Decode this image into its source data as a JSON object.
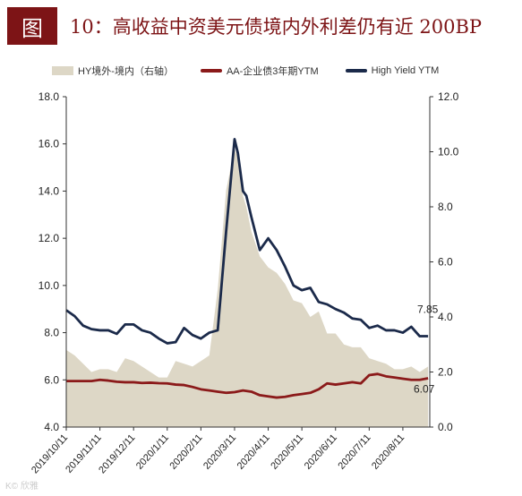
{
  "header": {
    "figure_label": "图",
    "title": "10：高收益中资美元债境内外利差仍有近 200BP"
  },
  "watermark": "K© 欣雅",
  "colors": {
    "spread_area": "#ddd7c6",
    "aa_line": "#8b1a1a",
    "hy_line": "#1b2a4a",
    "title_red": "#7d1416"
  },
  "chart_data": {
    "type": "line",
    "legend": [
      "HY境外-境内（右轴）",
      "AA-企业债3年期YTM",
      "High Yield YTM"
    ],
    "legend_placement": "top",
    "left_axis": {
      "ylim": [
        4,
        18
      ],
      "ticks": [
        "4.0",
        "6.0",
        "8.0",
        "10.0",
        "12.0",
        "14.0",
        "16.0",
        "18.0"
      ]
    },
    "right_axis": {
      "ylim": [
        0,
        12
      ],
      "ticks": [
        "0.0",
        "2.0",
        "4.0",
        "6.0",
        "8.0",
        "10.0",
        "12.0"
      ]
    },
    "x_ticks": [
      "2019/10/11",
      "2019/11/11",
      "2019/12/11",
      "2020/1/11",
      "2020/2/11",
      "2020/3/11",
      "2020/4/11",
      "2020/5/11",
      "2020/6/11",
      "2020/7/11",
      "2020/8/11"
    ],
    "grid": false,
    "series": [
      {
        "name": "HY境外-境内（右轴）",
        "axis": "right",
        "type": "area",
        "x": [
          0,
          0.25,
          0.5,
          0.75,
          1,
          1.25,
          1.5,
          1.75,
          2,
          2.25,
          2.5,
          2.75,
          3,
          3.25,
          3.5,
          3.75,
          4,
          4.25,
          4.5,
          4.75,
          5,
          5.1,
          5.25,
          5.35,
          5.5,
          5.75,
          6,
          6.25,
          6.5,
          6.75,
          7,
          7.25,
          7.5,
          7.75,
          8,
          8.25,
          8.5,
          8.75,
          9,
          9.25,
          9.5,
          9.75,
          10,
          10.25,
          10.5,
          10.75
        ],
        "values": [
          2.8,
          2.6,
          2.3,
          2.0,
          2.1,
          2.1,
          2.0,
          2.5,
          2.4,
          2.2,
          2.0,
          1.8,
          1.8,
          2.4,
          2.3,
          2.2,
          2.4,
          2.6,
          5.0,
          8.6,
          10.1,
          9.8,
          8.4,
          8.0,
          7.1,
          6.2,
          5.8,
          5.6,
          5.2,
          4.6,
          4.5,
          4.0,
          4.2,
          3.4,
          3.4,
          3.0,
          2.9,
          2.9,
          2.5,
          2.4,
          2.3,
          2.1,
          2.1,
          2.2,
          2.0,
          2.2
        ]
      },
      {
        "name": "AA-企业债3年期YTM",
        "axis": "left",
        "type": "line",
        "x": [
          0,
          0.25,
          0.5,
          0.75,
          1,
          1.25,
          1.5,
          1.75,
          2,
          2.25,
          2.5,
          2.75,
          3,
          3.25,
          3.5,
          3.75,
          4,
          4.25,
          4.5,
          4.75,
          5,
          5.25,
          5.5,
          5.75,
          6,
          6.25,
          6.5,
          6.75,
          7,
          7.25,
          7.5,
          7.75,
          8,
          8.25,
          8.5,
          8.75,
          9,
          9.25,
          9.5,
          9.75,
          10,
          10.25,
          10.5,
          10.75
        ],
        "values": [
          5.95,
          5.95,
          5.95,
          5.95,
          6.0,
          5.97,
          5.92,
          5.9,
          5.9,
          5.87,
          5.88,
          5.86,
          5.85,
          5.8,
          5.78,
          5.7,
          5.6,
          5.55,
          5.5,
          5.45,
          5.48,
          5.55,
          5.5,
          5.35,
          5.3,
          5.25,
          5.28,
          5.35,
          5.4,
          5.45,
          5.6,
          5.85,
          5.8,
          5.85,
          5.9,
          5.85,
          6.2,
          6.25,
          6.15,
          6.1,
          6.05,
          6.0,
          6.0,
          6.07
        ]
      },
      {
        "name": "High Yield YTM",
        "axis": "left",
        "type": "line",
        "x": [
          0,
          0.25,
          0.5,
          0.75,
          1,
          1.25,
          1.5,
          1.75,
          2,
          2.25,
          2.5,
          2.75,
          3,
          3.25,
          3.5,
          3.75,
          4,
          4.25,
          4.5,
          4.75,
          5,
          5.1,
          5.25,
          5.35,
          5.5,
          5.75,
          6,
          6.25,
          6.5,
          6.75,
          7,
          7.25,
          7.5,
          7.75,
          8,
          8.25,
          8.5,
          8.75,
          9,
          9.25,
          9.5,
          9.75,
          10,
          10.25,
          10.5,
          10.75
        ],
        "values": [
          8.95,
          8.7,
          8.3,
          8.15,
          8.1,
          8.1,
          7.95,
          8.35,
          8.35,
          8.1,
          8.0,
          7.75,
          7.55,
          7.6,
          8.2,
          7.9,
          7.75,
          8.0,
          8.1,
          12.3,
          16.2,
          15.6,
          14.0,
          13.8,
          12.9,
          11.5,
          12.0,
          11.5,
          10.8,
          10.0,
          9.8,
          9.9,
          9.3,
          9.2,
          9.0,
          8.85,
          8.6,
          8.55,
          8.2,
          8.3,
          8.1,
          8.1,
          8.0,
          8.25,
          7.85,
          7.85
        ]
      }
    ],
    "annotations": [
      {
        "label": "7.85",
        "series": "High Yield YTM"
      },
      {
        "label": "6.07",
        "series": "AA-企业债3年期YTM"
      }
    ]
  }
}
